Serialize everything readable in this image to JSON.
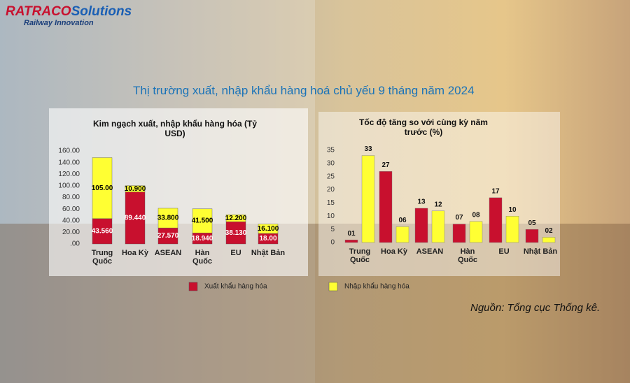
{
  "logo": {
    "brand": "RATRACO",
    "suffix": "Solutions",
    "tagline": "Railway Innovation"
  },
  "title": "Thị trường xuất, nhập khẩu hàng hoá chủ yếu 9 tháng năm 2024",
  "source": "Nguồn: Tổng cục Thống kê.",
  "chart_data": [
    {
      "type": "stacked_bar",
      "title": "Kim ngạch xuất, nhập khẩu hàng hóa (Tỷ USD)",
      "categories": [
        "Trung Quốc",
        "Hoa Kỳ",
        "ASEAN",
        "Hàn Quốc",
        "EU",
        "Nhật Bản"
      ],
      "series": [
        {
          "name": "Xuất khẩu hàng hóa",
          "color": "#c8102e",
          "values": [
            43.56,
            89.44,
            27.57,
            18.94,
            38.13,
            18.0
          ],
          "value_labels": [
            "43.560",
            "89.440",
            "27.570",
            "18.940",
            "38.130",
            "18.00"
          ]
        },
        {
          "name": "Nhập khẩu hàng hóa",
          "color": "#ffff33",
          "values": [
            105.0,
            10.9,
            33.8,
            41.5,
            12.2,
            16.1
          ],
          "value_labels": [
            "105.00",
            "10.900",
            "33.800",
            "41.500",
            "12.200",
            "16.100"
          ]
        }
      ],
      "ylim": [
        0,
        160
      ],
      "yticks": [
        {
          "value": 0,
          "label": ".00"
        },
        {
          "value": 20,
          "label": "20.00"
        },
        {
          "value": 40,
          "label": "40.00"
        },
        {
          "value": 60,
          "label": "60.00"
        },
        {
          "value": 80,
          "label": "80.00"
        },
        {
          "value": 100,
          "label": "100.00"
        },
        {
          "value": 120,
          "label": "120.00"
        },
        {
          "value": 140,
          "label": "140.00"
        },
        {
          "value": 160,
          "label": "160.00"
        }
      ]
    },
    {
      "type": "grouped_bar",
      "title": "Tốc độ tăng so với cùng kỳ năm trước (%)",
      "categories": [
        "Trung Quốc",
        "Hoa Kỳ",
        "ASEAN",
        "Hàn Quốc",
        "EU",
        "Nhật Bản"
      ],
      "series": [
        {
          "color": "#c8102e",
          "values": [
            1,
            27,
            13,
            7,
            17,
            5
          ],
          "value_labels": [
            "01",
            "27",
            "13",
            "07",
            "17",
            "05"
          ]
        },
        {
          "color": "#ffff33",
          "values": [
            33,
            6,
            12,
            8,
            10,
            2
          ],
          "value_labels": [
            "33",
            "06",
            "12",
            "08",
            "10",
            "02"
          ]
        }
      ],
      "ylim": [
        0,
        35
      ],
      "yticks": [
        0,
        5,
        10,
        15,
        20,
        25,
        30,
        35
      ]
    }
  ]
}
